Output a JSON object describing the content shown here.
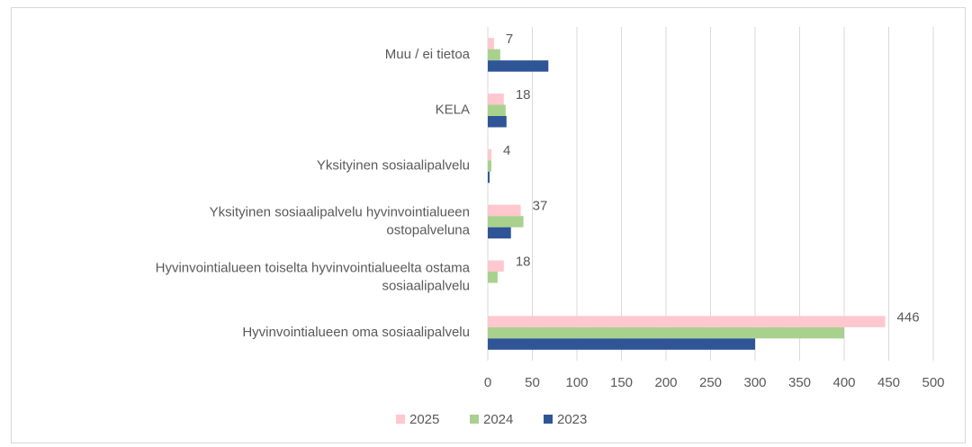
{
  "chart_data": {
    "type": "hbar",
    "categories": [
      "Muu / ei tietoa",
      "KELA",
      "Yksityinen sosiaalipalvelu",
      "Yksityinen sosiaalipalvelu hyvinvointialueen\nostopalveluna",
      "Hyvinvointialueen toiselta hyvinvointialueelta ostama\nsosiaalipalvelu",
      "Hyvinvointialueen oma sosiaalipalvelu"
    ],
    "series": [
      {
        "name": "2025",
        "color": "#ffc7ce",
        "values": [
          7,
          18,
          4,
          37,
          18,
          446
        ],
        "data_labels": true
      },
      {
        "name": "2024",
        "color": "#a9d18e",
        "values": [
          14,
          20,
          4,
          40,
          11,
          400
        ],
        "data_labels": false
      },
      {
        "name": "2023",
        "color": "#2f5597",
        "values": [
          68,
          21,
          2,
          26,
          0,
          300
        ],
        "data_labels": false
      }
    ],
    "xlim": [
      0,
      500
    ],
    "xticks": [
      0,
      50,
      100,
      150,
      200,
      250,
      300,
      350,
      400,
      450,
      500
    ],
    "grid": true,
    "legend": "bottom"
  }
}
